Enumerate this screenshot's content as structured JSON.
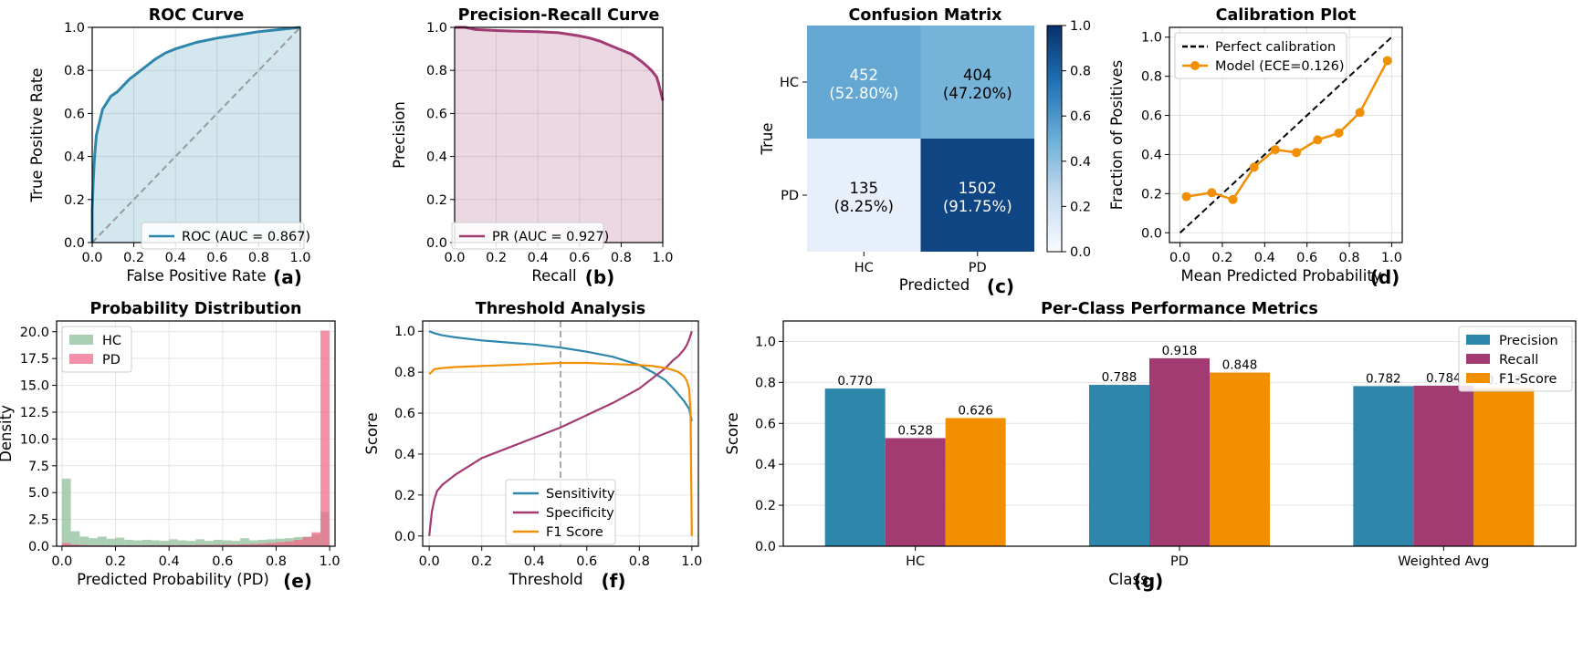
{
  "colors": {
    "blue": "#2e86ab",
    "purple": "#a23b72",
    "orange": "#f18f01",
    "green": "#8fbf9a",
    "pink": "#ee6c8b",
    "gray": "#999999"
  },
  "chart_data": [
    {
      "type": "line",
      "letter": "(a)",
      "title": "ROC Curve",
      "xlabel": "False Positive Rate",
      "ylabel": "True Positive Rate",
      "xlim": [
        0,
        1
      ],
      "ylim": [
        0,
        1
      ],
      "xticks": [
        "0.0",
        "0.2",
        "0.4",
        "0.6",
        "0.8",
        "1.0"
      ],
      "yticks": [
        "0.0",
        "0.2",
        "0.4",
        "0.6",
        "0.8",
        "1.0"
      ],
      "grid": true,
      "legend_position": "lower-right",
      "series": [
        {
          "name": "ROC (AUC = 0.867)",
          "x": [
            0,
            0,
            0.005,
            0.01,
            0.015,
            0.02,
            0.03,
            0.04,
            0.05,
            0.07,
            0.09,
            0.12,
            0.15,
            0.18,
            0.22,
            0.26,
            0.3,
            0.35,
            0.4,
            0.45,
            0.5,
            0.6,
            0.7,
            0.8,
            0.9,
            0.95,
            1.0
          ],
          "y": [
            0,
            0.15,
            0.28,
            0.38,
            0.44,
            0.5,
            0.54,
            0.58,
            0.62,
            0.65,
            0.68,
            0.7,
            0.73,
            0.76,
            0.79,
            0.82,
            0.85,
            0.88,
            0.9,
            0.915,
            0.93,
            0.95,
            0.965,
            0.98,
            0.99,
            0.995,
            1.0
          ]
        }
      ],
      "diagonal": true
    },
    {
      "type": "line",
      "letter": "(b)",
      "title": "Precision-Recall Curve",
      "xlabel": "Recall",
      "ylabel": "Precision",
      "xlim": [
        0,
        1
      ],
      "ylim": [
        0,
        1
      ],
      "xticks": [
        "0.0",
        "0.2",
        "0.4",
        "0.6",
        "0.8",
        "1.0"
      ],
      "yticks": [
        "0.0",
        "0.2",
        "0.4",
        "0.6",
        "0.8",
        "1.0"
      ],
      "grid": true,
      "legend_position": "lower-left",
      "series": [
        {
          "name": "PR (AUC = 0.927)",
          "x": [
            0,
            0.05,
            0.1,
            0.2,
            0.3,
            0.4,
            0.5,
            0.6,
            0.65,
            0.7,
            0.75,
            0.8,
            0.85,
            0.9,
            0.93,
            0.95,
            0.97,
            0.98,
            0.99,
            1.0
          ],
          "y": [
            1.0,
            1.0,
            0.99,
            0.985,
            0.982,
            0.98,
            0.975,
            0.96,
            0.95,
            0.935,
            0.915,
            0.895,
            0.875,
            0.84,
            0.815,
            0.795,
            0.77,
            0.74,
            0.7,
            0.66
          ]
        }
      ]
    },
    {
      "type": "heatmap",
      "letter": "(c)",
      "title": "Confusion Matrix",
      "xlabel": "Predicted",
      "ylabel": "True",
      "row_labels": [
        "HC",
        "PD"
      ],
      "col_labels": [
        "HC",
        "PD"
      ],
      "values": [
        [
          0.528,
          0.472
        ],
        [
          0.0825,
          0.9175
        ]
      ],
      "cells": [
        [
          "452",
          "404"
        ],
        [
          "135",
          "1502"
        ]
      ],
      "cell_pct": [
        [
          "(52.80%)",
          "(47.20%)"
        ],
        [
          "(8.25%)",
          "(91.75%)"
        ]
      ],
      "colorbar_ticks": [
        "0.0",
        "0.2",
        "0.4",
        "0.6",
        "0.8",
        "1.0"
      ],
      "colorbar_range": [
        0,
        1
      ]
    },
    {
      "type": "line",
      "letter": "(d)",
      "title": "Calibration Plot",
      "xlabel": "Mean Predicted Probability",
      "ylabel": "Fraction of Positives",
      "xlim": [
        0,
        1
      ],
      "ylim": [
        0,
        1
      ],
      "xticks": [
        "0.0",
        "0.2",
        "0.4",
        "0.6",
        "0.8",
        "1.0"
      ],
      "yticks": [
        "0.0",
        "0.2",
        "0.4",
        "0.6",
        "0.8",
        "1.0"
      ],
      "grid": true,
      "legend_position": "top-left",
      "series": [
        {
          "name": "Perfect calibration",
          "x": [
            0,
            1
          ],
          "y": [
            0,
            1
          ]
        },
        {
          "name": "Model (ECE=0.126)",
          "x": [
            0.03,
            0.15,
            0.25,
            0.35,
            0.45,
            0.55,
            0.65,
            0.75,
            0.85,
            0.98
          ],
          "y": [
            0.185,
            0.205,
            0.17,
            0.335,
            0.425,
            0.41,
            0.475,
            0.51,
            0.615,
            0.88
          ]
        }
      ]
    },
    {
      "type": "bar",
      "letter": "(e)",
      "title": "Probability Distribution",
      "xlabel": "Predicted Probability (PD)",
      "ylabel": "Density",
      "xlim": [
        -0.02,
        1.02
      ],
      "ylim": [
        0,
        21
      ],
      "xticks": [
        "0.0",
        "0.2",
        "0.4",
        "0.6",
        "0.8",
        "1.0"
      ],
      "yticks": [
        "0.0",
        "2.5",
        "5.0",
        "7.5",
        "10.0",
        "12.5",
        "15.0",
        "17.5",
        "20.0"
      ],
      "grid": true,
      "legend_position": "top-left",
      "bin_width": 0.0333,
      "series": [
        {
          "name": "HC",
          "values": [
            6.3,
            1.4,
            0.9,
            0.75,
            0.9,
            0.7,
            0.8,
            0.6,
            0.55,
            0.6,
            0.55,
            0.5,
            0.65,
            0.55,
            0.5,
            0.65,
            0.5,
            0.6,
            0.55,
            0.5,
            0.75,
            0.55,
            0.6,
            0.65,
            0.7,
            0.75,
            0.85,
            0.9,
            1.1,
            3.2
          ]
        },
        {
          "name": "PD",
          "values": [
            0.3,
            0.15,
            0.1,
            0.08,
            0.08,
            0.07,
            0.07,
            0.07,
            0.07,
            0.08,
            0.08,
            0.09,
            0.09,
            0.1,
            0.1,
            0.12,
            0.12,
            0.13,
            0.15,
            0.16,
            0.18,
            0.2,
            0.25,
            0.3,
            0.38,
            0.45,
            0.6,
            0.85,
            1.3,
            20.1
          ]
        }
      ]
    },
    {
      "type": "line",
      "letter": "(f)",
      "title": "Threshold Analysis",
      "xlabel": "Threshold",
      "ylabel": "Score",
      "xlim": [
        -0.025,
        1.025
      ],
      "ylim": [
        -0.05,
        1.05
      ],
      "xticks": [
        "0.0",
        "0.2",
        "0.4",
        "0.6",
        "0.8",
        "1.0"
      ],
      "yticks": [
        "0.0",
        "0.2",
        "0.4",
        "0.6",
        "0.8",
        "1.0"
      ],
      "grid": true,
      "legend_position": "lower-center",
      "vline": 0.5,
      "series": [
        {
          "name": "Sensitivity",
          "x": [
            0,
            0.02,
            0.05,
            0.1,
            0.2,
            0.3,
            0.4,
            0.5,
            0.6,
            0.7,
            0.8,
            0.85,
            0.9,
            0.93,
            0.95,
            0.97,
            0.98,
            0.99,
            1.0
          ],
          "y": [
            1.0,
            0.99,
            0.98,
            0.97,
            0.955,
            0.945,
            0.935,
            0.92,
            0.9,
            0.875,
            0.835,
            0.8,
            0.76,
            0.72,
            0.69,
            0.66,
            0.64,
            0.62,
            0.56
          ]
        },
        {
          "name": "Specificity",
          "x": [
            0,
            0.01,
            0.02,
            0.03,
            0.05,
            0.08,
            0.1,
            0.15,
            0.2,
            0.3,
            0.4,
            0.5,
            0.6,
            0.7,
            0.8,
            0.85,
            0.9,
            0.93,
            0.95,
            0.97,
            0.98,
            0.99,
            1.0
          ],
          "y": [
            0,
            0.12,
            0.18,
            0.22,
            0.25,
            0.28,
            0.3,
            0.34,
            0.38,
            0.43,
            0.48,
            0.53,
            0.59,
            0.65,
            0.72,
            0.77,
            0.82,
            0.86,
            0.88,
            0.91,
            0.93,
            0.96,
            1.0
          ]
        },
        {
          "name": "F1 Score",
          "x": [
            0,
            0.02,
            0.05,
            0.1,
            0.2,
            0.3,
            0.4,
            0.5,
            0.6,
            0.7,
            0.8,
            0.85,
            0.9,
            0.93,
            0.95,
            0.97,
            0.98,
            0.99,
            0.995,
            1.0
          ],
          "y": [
            0.79,
            0.815,
            0.82,
            0.825,
            0.83,
            0.835,
            0.84,
            0.845,
            0.845,
            0.84,
            0.835,
            0.83,
            0.82,
            0.81,
            0.8,
            0.78,
            0.76,
            0.72,
            0.6,
            0.0
          ]
        }
      ]
    },
    {
      "type": "bar",
      "letter": "(g)",
      "title": "Per-Class Performance Metrics",
      "xlabel": "Class",
      "ylabel": "Score",
      "ylim": [
        0,
        1.1
      ],
      "yticks": [
        "0.0",
        "0.2",
        "0.4",
        "0.6",
        "0.8",
        "1.0"
      ],
      "grid": true,
      "legend_position": "top-right",
      "categories": [
        "HC",
        "PD",
        "Weighted Avg"
      ],
      "series": [
        {
          "name": "Precision",
          "values": [
            0.77,
            0.788,
            0.782
          ],
          "labels": [
            "0.770",
            "0.788",
            "0.782"
          ]
        },
        {
          "name": "Recall",
          "values": [
            0.528,
            0.918,
            0.784
          ],
          "labels": [
            "0.528",
            "0.918",
            "0.784"
          ]
        },
        {
          "name": "F1-Score",
          "values": [
            0.626,
            0.848,
            0.772
          ],
          "labels": [
            "0.626",
            "0.848",
            "0.772"
          ]
        }
      ]
    }
  ]
}
